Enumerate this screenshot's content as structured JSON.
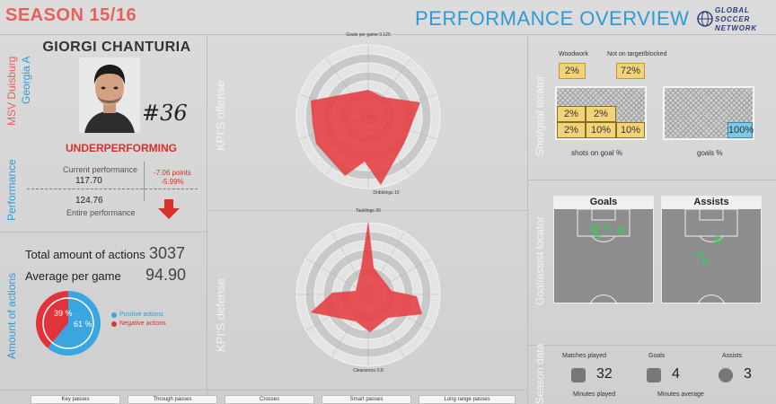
{
  "header": {
    "season": "SEASON 15/16",
    "title": "PERFORMANCE OVERVIEW",
    "logo": [
      "GLOBAL",
      "SOCCER",
      "NETWORK"
    ]
  },
  "player": {
    "name": "GIORGI CHANTURIA",
    "club": "MSV Duisburg",
    "nation": "Georgia A",
    "number": "#36",
    "status": "UNDERPERFORMING"
  },
  "performance": {
    "section": "Performance",
    "current_label": "Current performance",
    "current_value": "117.70",
    "delta_points": "-7.06 points",
    "delta_pct": "-5.99%",
    "entire_value": "124.76",
    "entire_label": "Entire performance"
  },
  "actions": {
    "section": "Amount of actions",
    "total_label": "Total amount of actions",
    "total_value": "3037",
    "avg_label": "Average per game",
    "avg_value": "94.90",
    "positive_pct": 61,
    "negative_pct": 39,
    "positive_text": "61 %",
    "negative_text": "39 %",
    "positive_label": "Positive actions",
    "negative_label": "Negative actions",
    "colors": {
      "positive": "#3aa6e0",
      "negative": "#e0343a"
    }
  },
  "kpi": {
    "offense_label": "KPI'S offense",
    "defense_label": "KPI'S defense",
    "offense_top": "Goals per game 0.125",
    "defense_top": "Tacklings 20",
    "offense_bottom": "Dribblings 10",
    "defense_bottom": "Clearances 0.8"
  },
  "shot_locator": {
    "section": "Shot/goal locator",
    "woodwork_label": "Woodwork",
    "woodwork_value": "2%",
    "not_on_target_label": "Not on target/blocked",
    "not_on_target_value": "72%",
    "zones": [
      "2%",
      "2%",
      "2%",
      "10%",
      "10%"
    ],
    "goals_zone": "100%",
    "shots_caption": "shots on goal %",
    "goals_caption": "goals %"
  },
  "assist_locator": {
    "section": "Goal/assist locator",
    "goals_title": "Goals",
    "assists_title": "Assists"
  },
  "season_data": {
    "section": "Season data",
    "matches_label": "Matches played",
    "matches_value": "32",
    "goals_label": "Goals",
    "goals_value": "4",
    "assists_label": "Assists",
    "assists_value": "3",
    "minutes_label": "Minutes played",
    "minutes_avg_label": "Minutes average"
  },
  "tabs": [
    "Key passes",
    "Through passes",
    "Crosses",
    "Smart passes",
    "Long range passes"
  ]
}
